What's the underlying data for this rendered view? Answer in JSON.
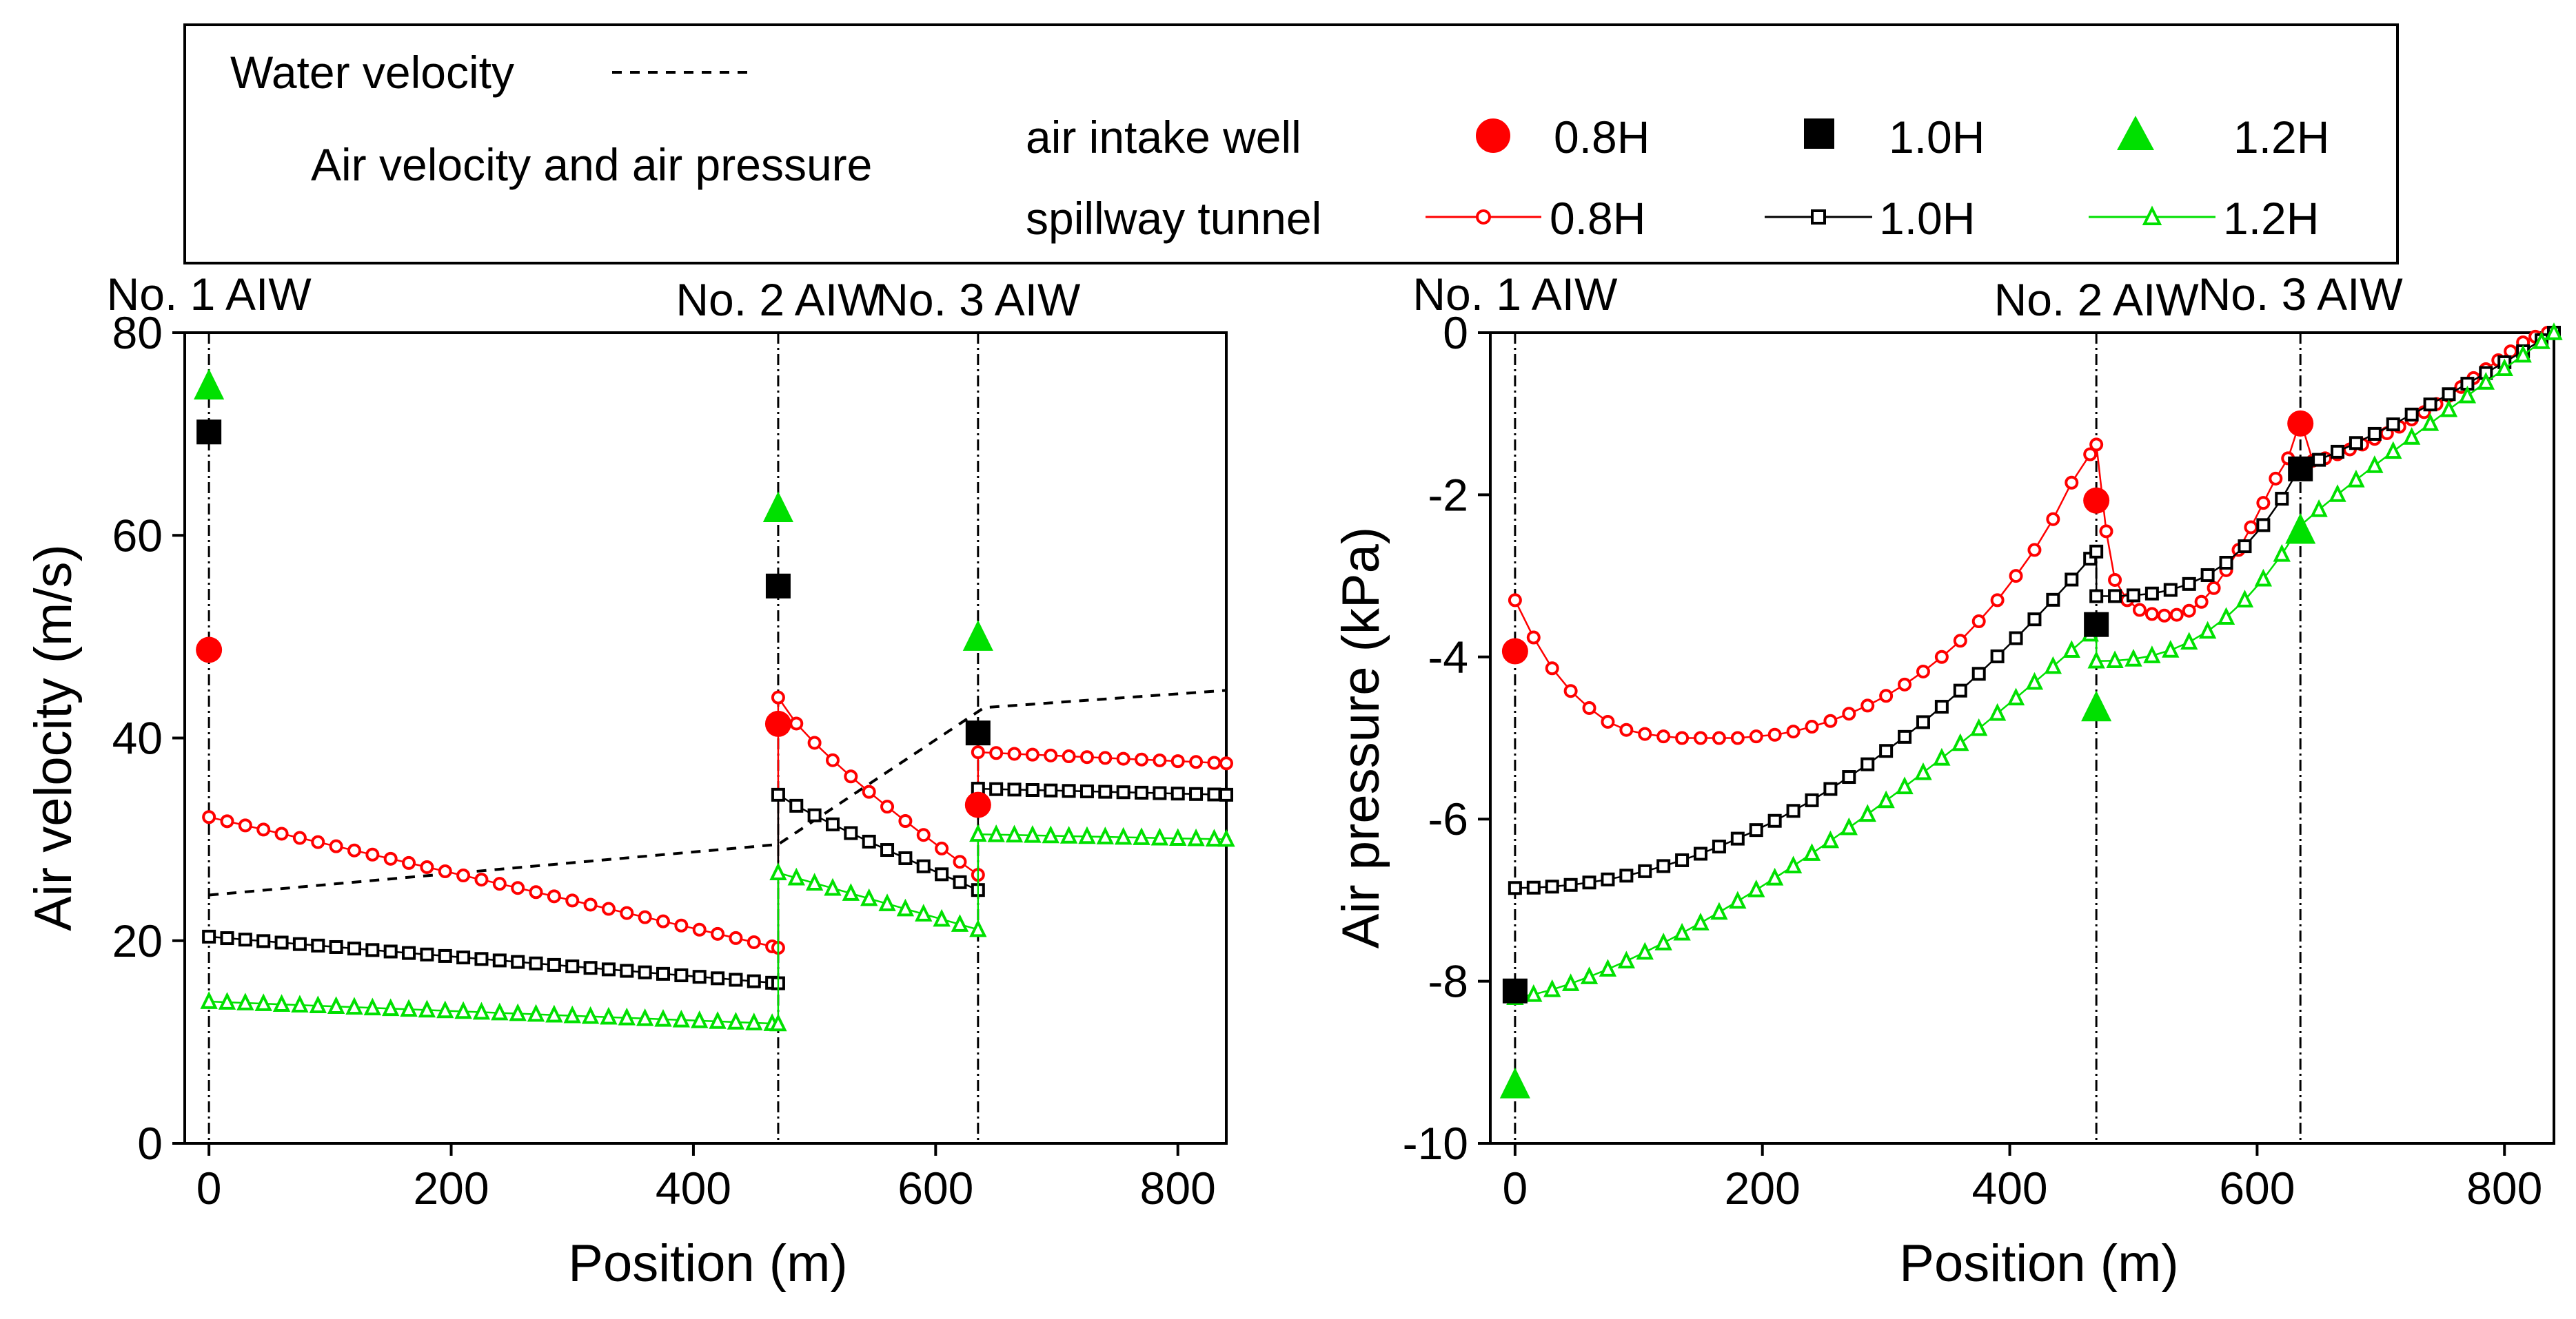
{
  "legend": {
    "water_label": "Water velocity",
    "air_label": "Air velocity and air pressure",
    "well_label": "air intake well",
    "tunnel_label": "spillway tunnel",
    "entries": [
      "0.8H",
      "1.0H",
      "1.2H"
    ]
  },
  "colors": {
    "h08": "#ff0000",
    "h10": "#000000",
    "h12": "#00e000"
  },
  "chart_data": [
    {
      "type": "scatter",
      "title": "",
      "xlabel": "Position (m)",
      "ylabel": "Air velocity (m/s)",
      "xlim": [
        -20,
        840
      ],
      "ylim": [
        0,
        80
      ],
      "xticks": [
        0,
        200,
        400,
        600,
        800
      ],
      "yticks": [
        0,
        20,
        40,
        60,
        80
      ],
      "aiw_positions": [
        0,
        470,
        635
      ],
      "aiw_labels": [
        "No. 1 AIW",
        "No. 2 AIW",
        "No. 3 AIW"
      ],
      "water_velocity": {
        "x": [
          0,
          470,
          640,
          840
        ],
        "y": [
          24.5,
          29.5,
          43,
          44.7
        ]
      },
      "intake_well": [
        {
          "name": "0.8H",
          "x": [
            0,
            470,
            635
          ],
          "y": [
            48.7,
            41.4,
            33.4
          ]
        },
        {
          "name": "1.0H",
          "x": [
            0,
            470,
            635
          ],
          "y": [
            70.2,
            55.0,
            40.5
          ]
        },
        {
          "name": "1.2H",
          "x": [
            0,
            470,
            635
          ],
          "y": [
            74.8,
            62.7,
            50.0
          ]
        }
      ],
      "tunnel": [
        {
          "name": "0.8H",
          "segments": [
            {
              "x0": 0,
              "x1": 470,
              "y0": 32.2,
              "y1": 19.3,
              "exp": 1.0
            },
            {
              "x0": 470,
              "x1": 635,
              "y0": 44.0,
              "y1": 26.5,
              "exp": 0.8
            },
            {
              "x0": 635,
              "x1": 840,
              "y0": 38.6,
              "y1": 37.5,
              "exp": 1.0
            }
          ]
        },
        {
          "name": "1.0H",
          "segments": [
            {
              "x0": 0,
              "x1": 470,
              "y0": 20.4,
              "y1": 15.8,
              "exp": 1.0
            },
            {
              "x0": 470,
              "x1": 635,
              "y0": 34.4,
              "y1": 25.0,
              "exp": 0.9
            },
            {
              "x0": 635,
              "x1": 840,
              "y0": 35.0,
              "y1": 34.4,
              "exp": 1.0
            }
          ]
        },
        {
          "name": "1.2H",
          "segments": [
            {
              "x0": 0,
              "x1": 470,
              "y0": 14.0,
              "y1": 11.8,
              "exp": 1.0
            },
            {
              "x0": 470,
              "x1": 635,
              "y0": 26.7,
              "y1": 21.1,
              "exp": 1.0
            },
            {
              "x0": 635,
              "x1": 840,
              "y0": 30.5,
              "y1": 30.0,
              "exp": 1.0
            }
          ]
        }
      ]
    },
    {
      "type": "scatter",
      "title": "",
      "xlabel": "Position (m)",
      "ylabel": "Air pressure (kPa)",
      "xlim": [
        -20,
        840
      ],
      "ylim": [
        -10,
        0
      ],
      "xticks": [
        0,
        200,
        400,
        600,
        800
      ],
      "yticks": [
        -10,
        -8,
        -6,
        -4,
        -2,
        0
      ],
      "aiw_positions": [
        0,
        470,
        635
      ],
      "aiw_labels": [
        "No. 1 AIW",
        "No. 2 AIW",
        "No. 3 AIW"
      ],
      "intake_well": [
        {
          "name": "0.8H",
          "x": [
            0,
            470,
            635
          ],
          "y": [
            -3.93,
            -2.07,
            -1.12
          ]
        },
        {
          "name": "1.0H",
          "x": [
            0,
            470,
            635
          ],
          "y": [
            -8.12,
            -3.6,
            -1.68
          ]
        },
        {
          "name": "1.2H",
          "x": [
            0,
            470,
            635
          ],
          "y": [
            -9.27,
            -4.62,
            -2.43
          ]
        }
      ],
      "tunnel": [
        {
          "name": "0.8H",
          "points": {
            "x": [
              0,
              15,
              30,
              45,
              60,
              75,
              90,
              105,
              120,
              135,
              150,
              165,
              180,
              195,
              210,
              225,
              240,
              255,
              270,
              285,
              300,
              315,
              330,
              345,
              360,
              375,
              390,
              405,
              420,
              435,
              450,
              465,
              470,
              478,
              485,
              495,
              505,
              515,
              525,
              535,
              545,
              555,
              565,
              575,
              585,
              595,
              605,
              615,
              625,
              635,
              645,
              655,
              665,
              675,
              685,
              695,
              705,
              715,
              725,
              735,
              745,
              755,
              765,
              775,
              785,
              795,
              805,
              815,
              825,
              835
            ],
            "y": [
              -3.3,
              -3.76,
              -4.14,
              -4.42,
              -4.63,
              -4.8,
              -4.9,
              -4.95,
              -4.98,
              -5.0,
              -5.0,
              -5.0,
              -5.0,
              -4.98,
              -4.96,
              -4.92,
              -4.86,
              -4.79,
              -4.7,
              -4.6,
              -4.48,
              -4.34,
              -4.18,
              -4.0,
              -3.8,
              -3.56,
              -3.3,
              -3.0,
              -2.68,
              -2.3,
              -1.85,
              -1.5,
              -1.38,
              -2.45,
              -3.05,
              -3.3,
              -3.42,
              -3.47,
              -3.49,
              -3.48,
              -3.43,
              -3.32,
              -3.15,
              -2.93,
              -2.68,
              -2.4,
              -2.1,
              -1.8,
              -1.55,
              -1.08,
              -1.58,
              -1.55,
              -1.5,
              -1.44,
              -1.38,
              -1.31,
              -1.24,
              -1.16,
              -1.07,
              -0.98,
              -0.88,
              -0.78,
              -0.67,
              -0.56,
              -0.45,
              -0.34,
              -0.23,
              -0.12,
              -0.05,
              0.0
            ]
          }
        },
        {
          "name": "1.0H",
          "segments": [
            {
              "x0": 0,
              "x1": 470,
              "y0": -6.85,
              "y1": -2.7,
              "exp": 2.0
            },
            {
              "x0": 470,
              "x1": 635,
              "y0": -3.25,
              "y1": -1.65,
              "exp": 3.0
            },
            {
              "x0": 635,
              "x1": 840,
              "y0": -1.65,
              "y1": 0.0,
              "exp": 1.15
            }
          ]
        },
        {
          "name": "1.2H",
          "segments": [
            {
              "x0": 0,
              "x1": 470,
              "y0": -8.2,
              "y1": -3.65,
              "exp": 1.4
            },
            {
              "x0": 470,
              "x1": 635,
              "y0": -4.05,
              "y1": -2.38,
              "exp": 2.5
            },
            {
              "x0": 635,
              "x1": 840,
              "y0": -2.38,
              "y1": 0.0,
              "exp": 0.95
            }
          ]
        }
      ]
    }
  ]
}
